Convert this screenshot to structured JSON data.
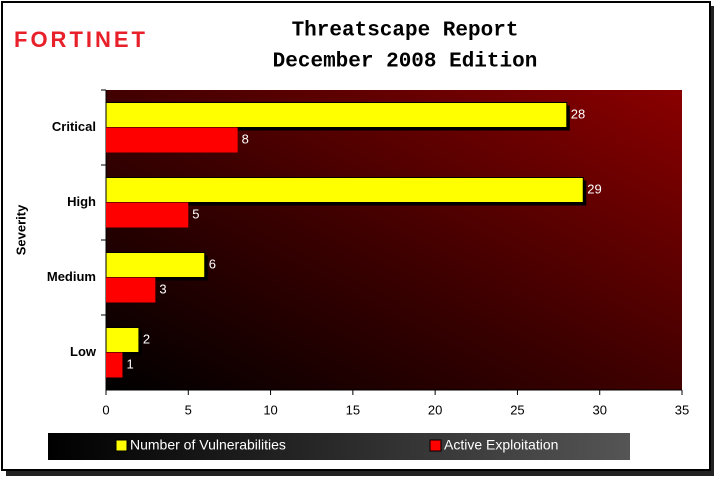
{
  "chart_data": {
    "type": "hbar",
    "logo": "FORTINET",
    "title": "Threatscape Report",
    "subtitle": "December 2008 Edition",
    "y_label": "Severity",
    "categories": [
      "Critical",
      "High",
      "Medium",
      "Low"
    ],
    "series": [
      {
        "name": "Number of Vulnerabilities",
        "color": "#ffff00",
        "values": [
          28,
          29,
          6,
          2
        ]
      },
      {
        "name": "Active Exploitation",
        "color": "#ff0000",
        "values": [
          8,
          5,
          3,
          1
        ]
      }
    ],
    "xlim": [
      0,
      35
    ],
    "xticks": [
      0,
      5,
      10,
      15,
      20,
      25,
      30,
      35
    ],
    "legend": "bottom"
  }
}
